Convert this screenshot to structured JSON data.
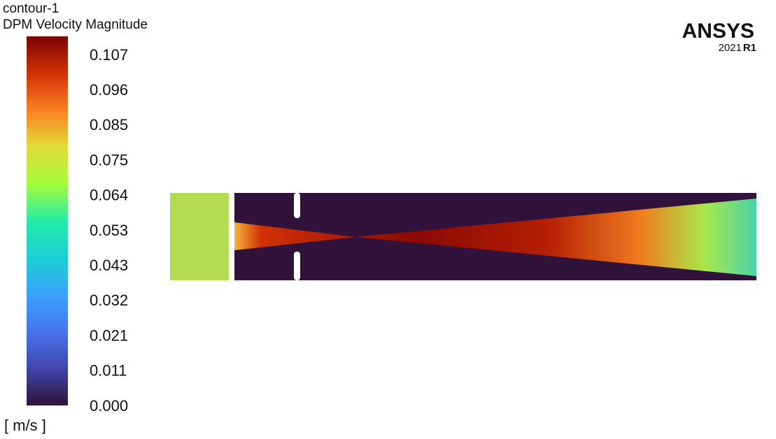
{
  "legend": {
    "name": "contour-1",
    "quantity": "DPM Velocity Magnitude",
    "labels": [
      "0.107",
      "0.096",
      "0.085",
      "0.075",
      "0.064",
      "0.053",
      "0.043",
      "0.032",
      "0.021",
      "0.011",
      "0.000"
    ],
    "unit": "[ m/s ]"
  },
  "logo": {
    "brand": "ANSYS",
    "version": "2021",
    "release": "R1"
  }
}
